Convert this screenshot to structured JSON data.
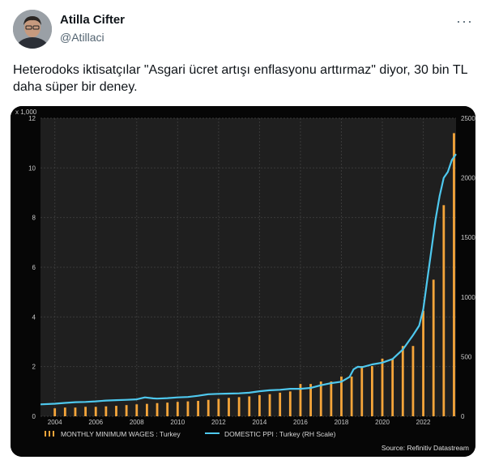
{
  "tweet": {
    "author_name": "Atilla Cifter",
    "author_handle": "@Atillaci",
    "more_icon": "more-icon",
    "text": "Heterodoks iktisatçılar \"Asgari ücret artışı enflasyonu arttırmaz\" diyor, 30 bin TL daha süper bir deney."
  },
  "chart_data": {
    "type": "bar",
    "left_axis_unit": "x 1,000",
    "x_ticks": [
      "2004",
      "2006",
      "2008",
      "2010",
      "2012",
      "2014",
      "2016",
      "2018",
      "2020",
      "2022"
    ],
    "left_ticks": [
      "0",
      "2",
      "4",
      "6",
      "8",
      "10",
      "12"
    ],
    "right_ticks": [
      "0",
      "500",
      "1000",
      "1500",
      "2000",
      "2500"
    ],
    "ylim_left": [
      0,
      12
    ],
    "ylim_right": [
      0,
      2500
    ],
    "xlim": [
      2003.3,
      2023.6
    ],
    "series": [
      {
        "name": "MONTHLY MINIMUM WAGES : Turkey",
        "axis": "left",
        "color": "#f5a53a",
        "points": [
          [
            2004.0,
            0.32
          ],
          [
            2004.5,
            0.35
          ],
          [
            2005.0,
            0.35
          ],
          [
            2005.5,
            0.38
          ],
          [
            2006.0,
            0.38
          ],
          [
            2006.5,
            0.4
          ],
          [
            2007.0,
            0.42
          ],
          [
            2007.5,
            0.45
          ],
          [
            2008.0,
            0.48
          ],
          [
            2008.5,
            0.5
          ],
          [
            2009.0,
            0.53
          ],
          [
            2009.5,
            0.55
          ],
          [
            2010.0,
            0.58
          ],
          [
            2010.5,
            0.6
          ],
          [
            2011.0,
            0.62
          ],
          [
            2011.5,
            0.66
          ],
          [
            2012.0,
            0.7
          ],
          [
            2012.5,
            0.74
          ],
          [
            2013.0,
            0.77
          ],
          [
            2013.5,
            0.8
          ],
          [
            2014.0,
            0.85
          ],
          [
            2014.5,
            0.89
          ],
          [
            2015.0,
            0.95
          ],
          [
            2015.5,
            1.0
          ],
          [
            2016.0,
            1.3
          ],
          [
            2016.5,
            1.3
          ],
          [
            2017.0,
            1.4
          ],
          [
            2017.5,
            1.4
          ],
          [
            2018.0,
            1.6
          ],
          [
            2018.5,
            1.6
          ],
          [
            2019.0,
            2.02
          ],
          [
            2019.5,
            2.02
          ],
          [
            2020.0,
            2.32
          ],
          [
            2020.5,
            2.32
          ],
          [
            2021.0,
            2.83
          ],
          [
            2021.5,
            2.83
          ],
          [
            2022.0,
            4.25
          ],
          [
            2022.5,
            5.5
          ],
          [
            2023.0,
            8.5
          ],
          [
            2023.5,
            11.4
          ]
        ]
      },
      {
        "name": "DOMESTIC PPI : Turkey (RH Scale)",
        "axis": "right",
        "color": "#4ec8ee",
        "points": [
          [
            2003.3,
            100
          ],
          [
            2004.0,
            105
          ],
          [
            2004.5,
            112
          ],
          [
            2005.0,
            118
          ],
          [
            2005.5,
            120
          ],
          [
            2006.0,
            125
          ],
          [
            2006.5,
            132
          ],
          [
            2007.0,
            135
          ],
          [
            2007.5,
            138
          ],
          [
            2008.0,
            142
          ],
          [
            2008.4,
            158
          ],
          [
            2008.8,
            150
          ],
          [
            2009.0,
            148
          ],
          [
            2009.5,
            152
          ],
          [
            2010.0,
            158
          ],
          [
            2010.5,
            162
          ],
          [
            2011.0,
            172
          ],
          [
            2011.5,
            185
          ],
          [
            2012.0,
            188
          ],
          [
            2012.5,
            190
          ],
          [
            2013.0,
            192
          ],
          [
            2013.5,
            198
          ],
          [
            2014.0,
            210
          ],
          [
            2014.5,
            218
          ],
          [
            2015.0,
            222
          ],
          [
            2015.5,
            230
          ],
          [
            2016.0,
            230
          ],
          [
            2016.5,
            238
          ],
          [
            2017.0,
            260
          ],
          [
            2017.5,
            278
          ],
          [
            2018.0,
            290
          ],
          [
            2018.4,
            330
          ],
          [
            2018.6,
            395
          ],
          [
            2018.8,
            415
          ],
          [
            2019.0,
            412
          ],
          [
            2019.5,
            435
          ],
          [
            2020.0,
            450
          ],
          [
            2020.5,
            480
          ],
          [
            2021.0,
            560
          ],
          [
            2021.5,
            680
          ],
          [
            2021.8,
            760
          ],
          [
            2022.0,
            900
          ],
          [
            2022.2,
            1150
          ],
          [
            2022.4,
            1400
          ],
          [
            2022.6,
            1650
          ],
          [
            2022.8,
            1850
          ],
          [
            2023.0,
            2000
          ],
          [
            2023.2,
            2050
          ],
          [
            2023.4,
            2150
          ],
          [
            2023.6,
            2200
          ]
        ]
      }
    ],
    "legend": [
      "MONTHLY MINIMUM WAGES : Turkey",
      "DOMESTIC PPI : Turkey (RH Scale)"
    ],
    "source": "Source: Refinitiv Datastream",
    "grid": true,
    "legend_placement": "bottom"
  }
}
